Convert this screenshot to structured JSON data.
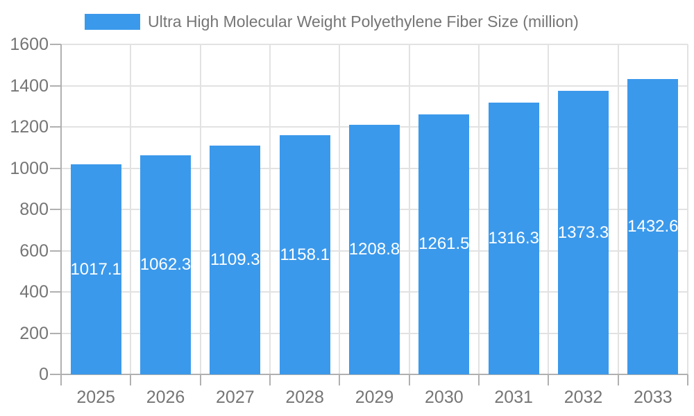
{
  "legend": {
    "label": "Ultra High Molecular Weight Polyethylene Fiber Size (million)"
  },
  "chart_data": {
    "type": "bar",
    "title": "Ultra High Molecular Weight Polyethylene Fiber Size (million)",
    "categories": [
      "2025",
      "2026",
      "2027",
      "2028",
      "2029",
      "2030",
      "2031",
      "2032",
      "2033"
    ],
    "values": [
      1017.1,
      1062.3,
      1109.3,
      1158.1,
      1208.8,
      1261.5,
      1316.3,
      1373.3,
      1432.6
    ],
    "xlabel": "",
    "ylabel": "",
    "ylim": [
      0,
      1600
    ],
    "ytick_step": 200,
    "grid": true,
    "legend_position": "top-left",
    "value_labels": "inside-center",
    "colors": {
      "bar": "#3B99EB",
      "value_label": "#FFFFFF",
      "axis_text": "#757575",
      "grid_line": "#E2E2E2",
      "axis_line": "#B0B0B0"
    }
  }
}
